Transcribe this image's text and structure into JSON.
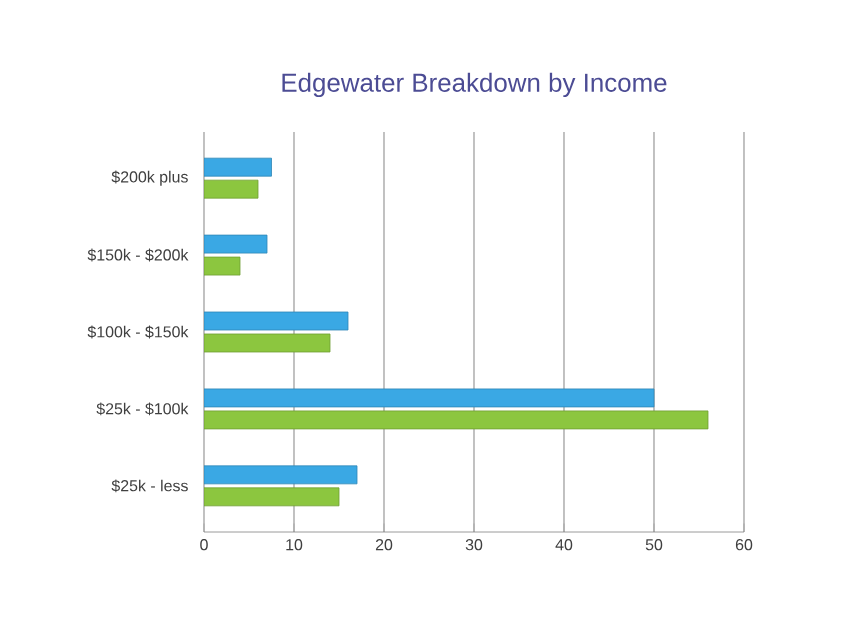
{
  "chart_data": {
    "type": "bar",
    "orientation": "horizontal",
    "title": "Edgewater Breakdown by Income",
    "categories": [
      "$200k plus",
      "$150k - $200k",
      "$100k - $150k",
      "$25k - $100k",
      "$25k - less"
    ],
    "series": [
      {
        "color": "#3aa8e4",
        "values": [
          7.5,
          7,
          16,
          50,
          17
        ]
      },
      {
        "color": "#8cc63f",
        "values": [
          6,
          4,
          14,
          56,
          15
        ]
      }
    ],
    "xlim": [
      0,
      60
    ],
    "xticks": [
      0,
      10,
      20,
      30,
      40,
      50,
      60
    ],
    "grid": "x"
  }
}
